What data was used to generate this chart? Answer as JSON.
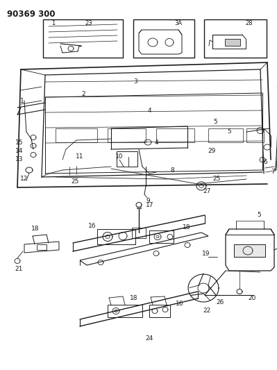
{
  "title": "90369 300",
  "bg_color": "#ffffff",
  "line_color": "#1a1a1a",
  "title_fontsize": 8.5,
  "label_fontsize": 6.5,
  "fig_width": 3.99,
  "fig_height": 5.33,
  "dpi": 100
}
